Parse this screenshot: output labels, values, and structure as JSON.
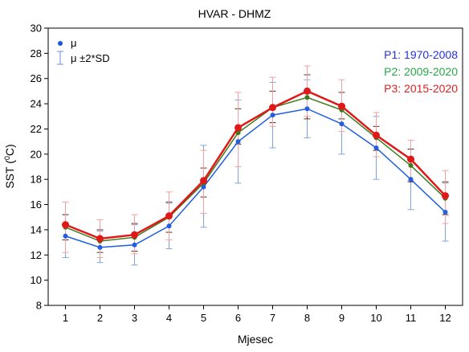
{
  "chart_data": {
    "type": "line",
    "title": "HVAR -  DHMZ",
    "xlabel": "Mjesec",
    "ylabel_main": "SST (",
    "ylabel_sup": "0",
    "ylabel_tail": "C)",
    "xlim": [
      0.5,
      12.5
    ],
    "ylim": [
      8,
      30
    ],
    "x_ticks": [
      1,
      2,
      3,
      4,
      5,
      6,
      7,
      8,
      9,
      10,
      11,
      12
    ],
    "y_ticks": [
      8,
      10,
      12,
      14,
      16,
      18,
      20,
      22,
      24,
      26,
      28,
      30
    ],
    "grid": false,
    "legend": {
      "placement": "top-left",
      "mean_label": "μ",
      "sd_label": "μ ±2*SD",
      "mean_color": "#1a55e3",
      "sd_color": "#6d8fd6"
    },
    "x": [
      1,
      2,
      3,
      4,
      5,
      6,
      7,
      8,
      9,
      10,
      11,
      12
    ],
    "series": [
      {
        "name": "P1: 1970-2008",
        "line_color": "#1f5fe0",
        "err_color": "#7fa3e0",
        "label_color": "#2233dd",
        "marker_size": 3,
        "line_width": 1.5,
        "values": [
          13.5,
          12.6,
          12.8,
          14.3,
          17.4,
          21.0,
          23.1,
          23.6,
          22.4,
          20.5,
          18.0,
          15.4
        ],
        "err_low": [
          11.8,
          11.4,
          11.2,
          12.5,
          14.2,
          17.7,
          20.5,
          21.3,
          20.0,
          18.0,
          15.6,
          13.1
        ],
        "err_high": [
          15.2,
          13.9,
          14.4,
          16.1,
          20.7,
          24.3,
          25.7,
          25.9,
          24.9,
          23.0,
          20.4,
          17.7
        ]
      },
      {
        "name": "P2: 2009-2020",
        "line_color": "#3f7a1e",
        "err_color": "#6b2a1a",
        "label_color": "#28a745",
        "marker_size": 3,
        "line_width": 1.5,
        "values": [
          14.2,
          13.1,
          13.4,
          15.0,
          17.7,
          21.7,
          23.7,
          24.5,
          23.5,
          21.3,
          19.1,
          16.5
        ],
        "err_low": [
          13.2,
          12.2,
          12.3,
          13.8,
          16.6,
          20.8,
          22.5,
          22.8,
          22.8,
          20.3,
          17.8,
          15.2
        ],
        "err_high": [
          15.2,
          14.0,
          14.5,
          16.2,
          18.9,
          23.6,
          25.0,
          26.3,
          24.9,
          22.2,
          20.4,
          17.8
        ]
      },
      {
        "name": "P3: 2015-2020",
        "line_color": "#e01818",
        "err_color": "#f5a0a0",
        "label_color": "#e02020",
        "marker_size": 4.5,
        "line_width": 2.5,
        "values": [
          14.4,
          13.3,
          13.6,
          15.1,
          17.9,
          22.1,
          23.7,
          25.0,
          23.8,
          21.5,
          19.6,
          16.7
        ],
        "err_low": [
          12.2,
          11.8,
          12.1,
          13.2,
          15.3,
          19.0,
          22.2,
          23.0,
          21.8,
          19.8,
          17.9,
          14.5
        ],
        "err_high": [
          16.2,
          14.8,
          15.2,
          17.0,
          20.3,
          24.9,
          26.1,
          27.0,
          25.9,
          23.3,
          21.1,
          18.7
        ]
      }
    ]
  }
}
